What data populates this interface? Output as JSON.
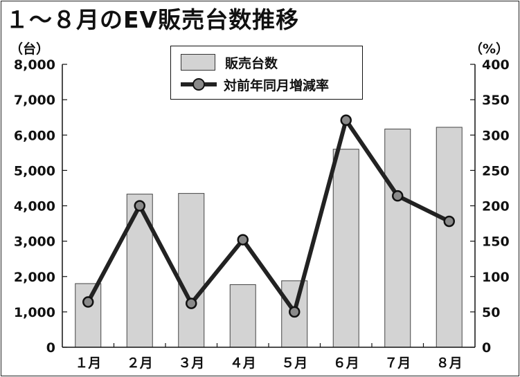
{
  "title": "１～８月のEV販売台数推移",
  "units": {
    "left": "（台）",
    "right": "（%）"
  },
  "colors": {
    "bar_fill": "#d3d3d3",
    "bar_stroke": "#444444",
    "line": "#222222",
    "marker_fill": "#8a8a8a"
  },
  "chart_data": {
    "type": "bar",
    "title": "１～８月のEV販売台数推移",
    "categories": [
      "１月",
      "２月",
      "３月",
      "４月",
      "５月",
      "６月",
      "７月",
      "８月"
    ],
    "series": [
      {
        "name": "販売台数",
        "type": "bar",
        "axis": "left",
        "values": [
          1800,
          4330,
          4350,
          1770,
          1880,
          5600,
          6170,
          6220
        ]
      },
      {
        "name": "対前年同月増減率",
        "type": "line",
        "axis": "right",
        "values": [
          64,
          200,
          62,
          152,
          50,
          321,
          214,
          178
        ]
      }
    ],
    "y_left": {
      "range": [
        0,
        8000
      ],
      "ticks": [
        "0",
        "1,000",
        "2,000",
        "3,000",
        "4,000",
        "5,000",
        "6,000",
        "7,000",
        "8,000"
      ]
    },
    "y_right": {
      "range": [
        0,
        400
      ],
      "ticks": [
        "0",
        "50",
        "100",
        "150",
        "200",
        "250",
        "300",
        "350",
        "400"
      ]
    },
    "legend_position": "top-center",
    "grid": false
  }
}
